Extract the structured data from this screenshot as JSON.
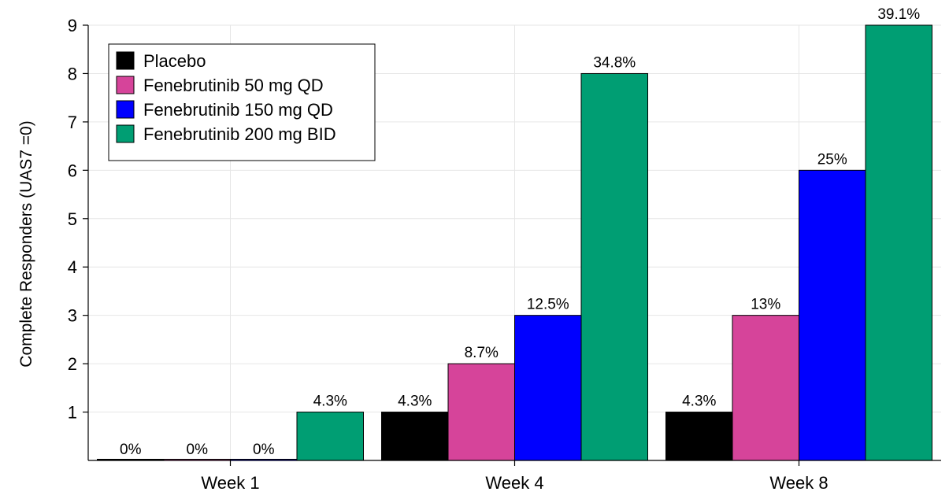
{
  "chart_data": {
    "type": "bar",
    "title": "",
    "xlabel": "",
    "ylabel": "Complete Responders (UAS7 =0)",
    "ylim": [
      0,
      9
    ],
    "yticks": [
      1,
      2,
      3,
      4,
      5,
      6,
      7,
      8,
      9
    ],
    "grid": true,
    "legend_position": "top-left",
    "categories": [
      "Week 1",
      "Week 4",
      "Week 8"
    ],
    "series": [
      {
        "name": "Placebo",
        "color": "#000000",
        "values": [
          0,
          1,
          1
        ],
        "labels": [
          "0%",
          "4.3%",
          "4.3%"
        ]
      },
      {
        "name": "Fenebrutinib 50 mg QD",
        "color": "#d6449a",
        "values": [
          0,
          2,
          3
        ],
        "labels": [
          "0%",
          "8.7%",
          "13%"
        ]
      },
      {
        "name": "Fenebrutinib 150 mg QD",
        "color": "#0000ff",
        "values": [
          0,
          3,
          6
        ],
        "labels": [
          "0%",
          "12.5%",
          "25%"
        ]
      },
      {
        "name": "Fenebrutinib 200 mg BID",
        "color": "#009e73",
        "values": [
          1,
          8,
          9
        ],
        "labels": [
          "4.3%",
          "34.8%",
          "39.1%"
        ]
      }
    ]
  }
}
